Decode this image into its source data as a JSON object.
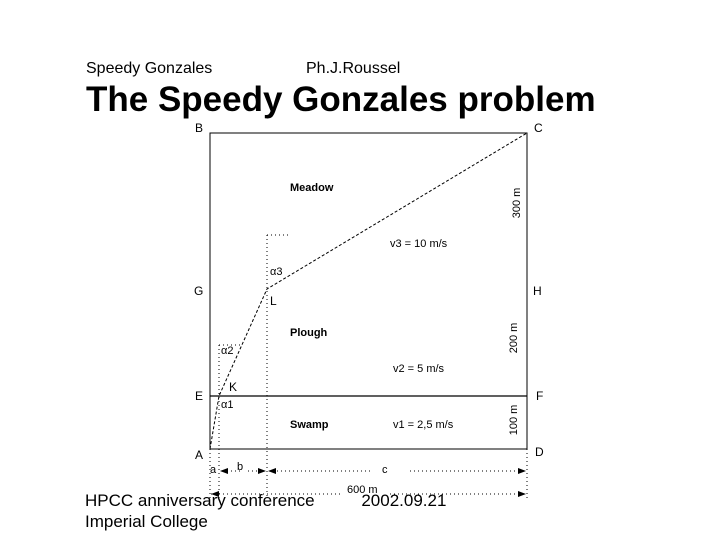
{
  "header": {
    "left": "Speedy Gonzales",
    "right": "Ph.J.Roussel",
    "title": "The Speedy Gonzales problem"
  },
  "diagram": {
    "points": {
      "B": "B",
      "C": "C",
      "G": "G",
      "H": "H",
      "E": "E",
      "F": "F",
      "A": "A",
      "D": "D",
      "K": "K",
      "L": "L"
    },
    "zones": {
      "meadow": "Meadow",
      "plough": "Plough",
      "swamp": "Swamp"
    },
    "speeds": {
      "v3": "v3 = 10 m/s",
      "v2": "v2 = 5 m/s",
      "v1": "v1 = 2,5 m/s"
    },
    "angles": {
      "a3": "α3",
      "a2": "α2",
      "a1": "α1"
    },
    "heights": {
      "h300": "300 m",
      "h200": "200 m",
      "h100": "100 m"
    },
    "widths": {
      "a": "a",
      "b": "b",
      "c": "c",
      "total": "600 m"
    }
  },
  "footer": {
    "conference": "HPCC anniversary conference",
    "date": "2002.09.21",
    "institution": "Imperial College"
  }
}
